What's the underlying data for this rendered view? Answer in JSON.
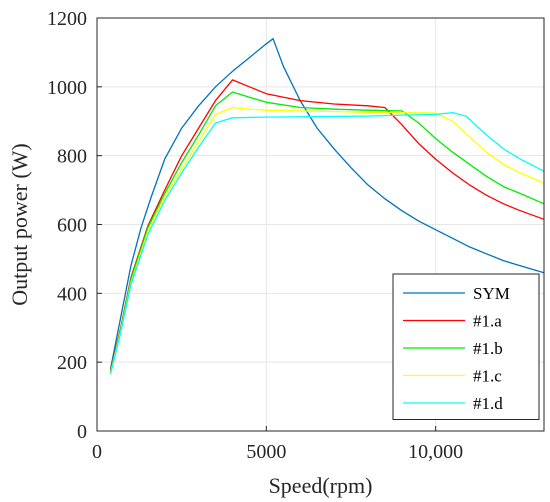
{
  "chart_data": {
    "type": "line",
    "title": "",
    "xlabel": "Speed(rpm)",
    "ylabel": "Output power (W)",
    "xlim": [
      0,
      13200
    ],
    "ylim": [
      0,
      1200
    ],
    "xticks": [
      0,
      5000,
      10000
    ],
    "xtick_labels": [
      "0",
      "5000",
      "10,000"
    ],
    "yticks": [
      0,
      200,
      400,
      600,
      800,
      1000,
      1200
    ],
    "ytick_labels": [
      "0",
      "200",
      "400",
      "600",
      "800",
      "1000",
      "1200"
    ],
    "grid": true,
    "legend_position": "bottom-right",
    "series": [
      {
        "name": "SYM",
        "color": "#0072BD",
        "x": [
          400,
          700,
          1000,
          1300,
          1600,
          2000,
          2500,
          3000,
          3500,
          4000,
          4500,
          5000,
          5200,
          5500,
          6000,
          6500,
          7000,
          7500,
          8000,
          8500,
          9000,
          9500,
          10000,
          10500,
          11000,
          11500,
          12000,
          12500,
          13200
        ],
        "values": [
          180,
          330,
          480,
          590,
          680,
          790,
          880,
          945,
          1000,
          1045,
          1085,
          1125,
          1140,
          1060,
          960,
          880,
          820,
          765,
          715,
          675,
          640,
          610,
          585,
          560,
          535,
          515,
          495,
          480,
          460
        ]
      },
      {
        "name": "#1.a",
        "color": "#FF0000",
        "x": [
          400,
          700,
          1000,
          1500,
          2000,
          2500,
          3000,
          3500,
          4000,
          4500,
          5000,
          6000,
          7000,
          8000,
          8500,
          9000,
          9500,
          10000,
          10500,
          11000,
          11500,
          12000,
          12500,
          13200
        ],
        "values": [
          175,
          300,
          445,
          595,
          700,
          800,
          880,
          960,
          1020,
          1000,
          980,
          960,
          950,
          945,
          940,
          890,
          835,
          790,
          750,
          715,
          685,
          660,
          640,
          615
        ]
      },
      {
        "name": "#1.b",
        "color": "#00EE00",
        "x": [
          400,
          700,
          1000,
          1500,
          2000,
          2500,
          3000,
          3500,
          4000,
          4500,
          5000,
          6000,
          7000,
          8000,
          9000,
          9500,
          10000,
          10500,
          11000,
          11500,
          12000,
          12500,
          13200
        ],
        "values": [
          170,
          295,
          440,
          590,
          690,
          780,
          860,
          945,
          985,
          970,
          955,
          940,
          935,
          932,
          930,
          895,
          850,
          810,
          775,
          740,
          710,
          690,
          660
        ]
      },
      {
        "name": "#1.c",
        "color": "#FFFF00",
        "x": [
          400,
          700,
          1000,
          1500,
          2000,
          2500,
          3000,
          3500,
          4000,
          4500,
          5000,
          6000,
          7000,
          8000,
          9000,
          10000,
          10500,
          11000,
          11500,
          12000,
          12500,
          13200
        ],
        "values": [
          168,
          290,
          430,
          580,
          680,
          760,
          840,
          920,
          940,
          935,
          932,
          930,
          928,
          926,
          925,
          924,
          900,
          855,
          810,
          775,
          750,
          720
        ]
      },
      {
        "name": "#1.d",
        "color": "#00FFFF",
        "x": [
          400,
          700,
          1000,
          1500,
          2000,
          2500,
          3000,
          3500,
          4000,
          5000,
          6000,
          7000,
          8000,
          9000,
          10000,
          10500,
          10900,
          11500,
          12000,
          12500,
          13200
        ],
        "values": [
          165,
          285,
          425,
          570,
          670,
          750,
          825,
          895,
          910,
          912,
          913,
          914,
          915,
          918,
          920,
          925,
          915,
          860,
          820,
          790,
          755
        ]
      }
    ]
  }
}
